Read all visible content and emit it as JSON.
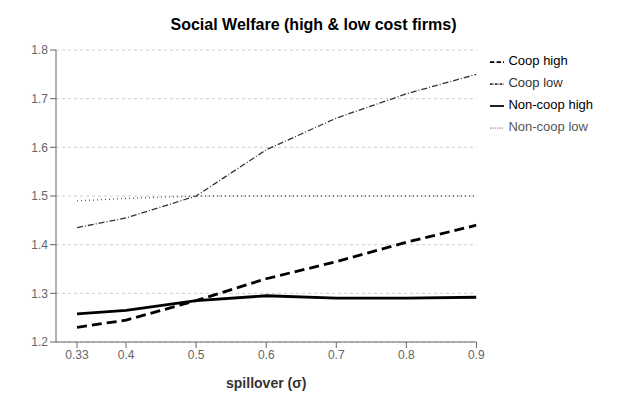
{
  "chart_data": {
    "type": "line",
    "title": "Social Welfare (high & low cost firms)",
    "x_label": "spillover (σ)",
    "x": [
      0.33,
      0.4,
      0.5,
      0.6,
      0.7,
      0.8,
      0.9
    ],
    "series": [
      {
        "name": "Non-coop high",
        "color": "#000000",
        "line_style": "solid",
        "values": [
          1.258,
          1.265,
          1.285,
          1.295,
          1.29,
          1.29,
          1.292
        ]
      },
      {
        "name": "Coop high",
        "color": "#000000",
        "line_style": "dashed",
        "values": [
          1.23,
          1.245,
          1.285,
          1.33,
          1.365,
          1.405,
          1.44
        ]
      },
      {
        "name": "Non-coop low",
        "color": "#555555",
        "line_style": "dotted",
        "values": [
          1.49,
          1.495,
          1.5,
          1.5,
          1.5,
          1.5,
          1.5
        ]
      },
      {
        "name": "Coop low",
        "color": "#333333",
        "line_style": "dashdot",
        "values": [
          1.435,
          1.455,
          1.5,
          1.595,
          1.66,
          1.71,
          1.75
        ]
      }
    ],
    "xlim": [
      0.3,
      0.9
    ],
    "xticks": [
      0.33,
      0.4,
      0.5,
      0.6,
      0.7,
      0.8,
      0.9
    ],
    "ylim": [
      1.2,
      1.8
    ],
    "yticks": [
      1.2,
      1.3,
      1.4,
      1.5,
      1.6,
      1.7,
      1.8
    ],
    "grid": "y",
    "legend": "right"
  }
}
